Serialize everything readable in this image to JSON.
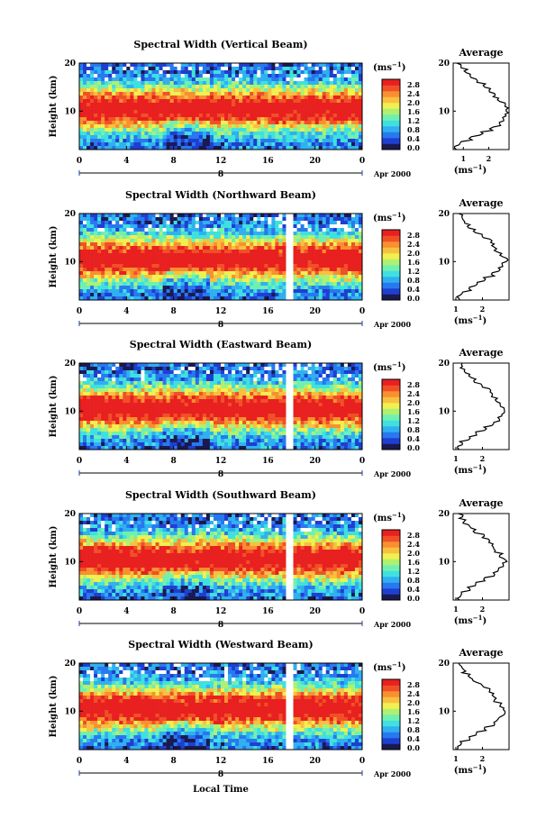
{
  "colors": {
    "scale": [
      "#1a1a50",
      "#1e3fd0",
      "#2878f0",
      "#30b0f0",
      "#40e0e0",
      "#70f0b0",
      "#b0f070",
      "#f0f050",
      "#f8c040",
      "#f89030",
      "#f05028",
      "#e82020"
    ],
    "axis": "#000000",
    "background": "#ffffff",
    "missing": "#ffffff"
  },
  "figure": {
    "xlabel": "Local Time",
    "date_label": "Apr 2000",
    "day_label": "8",
    "colorbar_unit_base": "(ms",
    "colorbar_unit_exp": "−1",
    "colorbar_unit_close": ")",
    "colorbar_ticks": [
      "0.0",
      "0.4",
      "0.8",
      "1.2",
      "1.6",
      "2.0",
      "2.4",
      "2.8"
    ],
    "average_title": "Average",
    "average_xlabel_base": "(ms",
    "average_xlabel_exp": "−1",
    "average_xlabel_close": ")",
    "height_label": "Height (km)",
    "x_ticks": [
      "0",
      "4",
      "8",
      "12",
      "16",
      "20",
      "0"
    ],
    "y_ticks": [
      "20",
      "10"
    ]
  },
  "chart_data": [
    {
      "type": "heatmap",
      "title": "Spectral Width (Vertical Beam)",
      "xlabel": "Local Time",
      "ylabel": "Height (km)",
      "x_range_hours": [
        0,
        24
      ],
      "y_range_km": [
        2,
        20
      ],
      "color_range": [
        0.0,
        2.8
      ],
      "average_profile": {
        "xticks": [
          "1",
          "2"
        ],
        "xlim": [
          0.6,
          2.8
        ],
        "height_km": [
          2,
          3,
          4,
          5,
          6,
          7,
          8,
          9,
          10,
          11,
          12,
          13,
          14,
          15,
          16,
          17,
          18,
          19,
          20
        ],
        "width": [
          0.7,
          0.9,
          1.3,
          1.7,
          2.1,
          2.4,
          2.6,
          2.7,
          2.75,
          2.6,
          2.4,
          2.2,
          2.0,
          1.8,
          1.5,
          1.3,
          1.1,
          0.9,
          0.8
        ]
      }
    },
    {
      "type": "heatmap",
      "title": "Spectral Width (Northward Beam)",
      "xlabel": "Local Time",
      "ylabel": "Height (km)",
      "x_range_hours": [
        0,
        24
      ],
      "y_range_km": [
        2,
        20
      ],
      "color_range": [
        0.0,
        2.8
      ],
      "average_profile": {
        "xticks": [
          "1",
          "2"
        ],
        "xlim": [
          0.9,
          3.0
        ],
        "height_km": [
          2,
          3,
          4,
          5,
          6,
          7,
          8,
          9,
          10,
          11,
          12,
          13,
          14,
          15,
          16,
          17,
          18,
          19,
          20
        ],
        "width": [
          1.1,
          1.2,
          1.5,
          1.8,
          2.1,
          2.4,
          2.6,
          2.8,
          2.9,
          2.7,
          2.5,
          2.4,
          2.3,
          2.0,
          1.7,
          1.5,
          1.3,
          1.2,
          1.1
        ]
      }
    },
    {
      "type": "heatmap",
      "title": "Spectral Width (Eastward Beam)",
      "xlabel": "Local Time",
      "ylabel": "Height (km)",
      "x_range_hours": [
        0,
        24
      ],
      "y_range_km": [
        2,
        20
      ],
      "color_range": [
        0.0,
        2.8
      ],
      "average_profile": {
        "xticks": [
          "1",
          "2"
        ],
        "xlim": [
          0.9,
          3.0
        ],
        "height_km": [
          2,
          3,
          4,
          5,
          6,
          7,
          8,
          9,
          10,
          11,
          12,
          13,
          14,
          15,
          16,
          17,
          18,
          19,
          20
        ],
        "width": [
          1.1,
          1.2,
          1.5,
          1.8,
          2.1,
          2.4,
          2.6,
          2.8,
          2.85,
          2.7,
          2.5,
          2.4,
          2.3,
          2.0,
          1.7,
          1.5,
          1.3,
          1.2,
          1.2
        ]
      }
    },
    {
      "type": "heatmap",
      "title": "Spectral Width (Southward Beam)",
      "xlabel": "Local Time",
      "ylabel": "Height (km)",
      "x_range_hours": [
        0,
        24
      ],
      "y_range_km": [
        2,
        20
      ],
      "color_range": [
        0.0,
        2.8
      ],
      "average_profile": {
        "xticks": [
          "1",
          "2"
        ],
        "xlim": [
          0.9,
          3.0
        ],
        "height_km": [
          2,
          3,
          4,
          5,
          6,
          7,
          8,
          9,
          10,
          11,
          12,
          13,
          14,
          15,
          16,
          17,
          18,
          19,
          20
        ],
        "width": [
          1.1,
          1.2,
          1.5,
          1.8,
          2.1,
          2.4,
          2.6,
          2.8,
          2.85,
          2.7,
          2.5,
          2.4,
          2.3,
          2.0,
          1.7,
          1.5,
          1.3,
          1.2,
          1.1
        ]
      }
    },
    {
      "type": "heatmap",
      "title": "Spectral Width (Westward Beam)",
      "xlabel": "Local Time",
      "ylabel": "Height (km)",
      "x_range_hours": [
        0,
        24
      ],
      "y_range_km": [
        2,
        20
      ],
      "color_range": [
        0.0,
        2.8
      ],
      "average_profile": {
        "xticks": [
          "1",
          "2"
        ],
        "xlim": [
          0.9,
          3.0
        ],
        "height_km": [
          2,
          3,
          4,
          5,
          6,
          7,
          8,
          9,
          10,
          11,
          12,
          13,
          14,
          15,
          16,
          17,
          18,
          19,
          20
        ],
        "width": [
          1.1,
          1.2,
          1.5,
          1.8,
          2.1,
          2.4,
          2.6,
          2.8,
          2.85,
          2.7,
          2.5,
          2.4,
          2.3,
          2.0,
          1.7,
          1.5,
          1.3,
          1.2,
          1.1
        ]
      }
    }
  ]
}
